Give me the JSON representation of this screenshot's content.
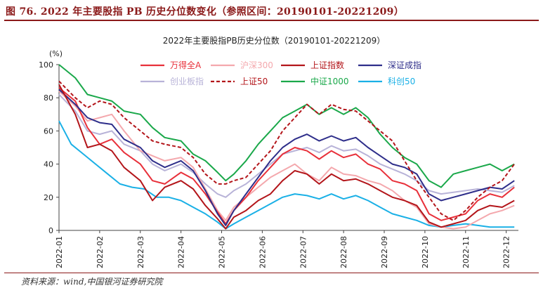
{
  "figure": {
    "caption": "图 76. 2022 年主要股指 PB 历史分位数变化（参照区间：20190101-20221209）",
    "source": "资料来源：wind,中国银河证券研究院"
  },
  "chart_data": {
    "type": "line",
    "title": "2022年主要股指PB历史分位数（20190101-20221209）",
    "ylabel": "(%)",
    "ylim": [
      0,
      100
    ],
    "yticks": [
      0,
      20,
      40,
      60,
      80,
      100
    ],
    "xticks": [
      "2022-01",
      "2022-02",
      "2022-03",
      "2022-04",
      "2022-05",
      "2022-06",
      "2022-07",
      "2022-08",
      "2022-09",
      "2022-10",
      "2022-11",
      "2022-12"
    ],
    "x_range_months": [
      0,
      11.3
    ],
    "grid": false,
    "legend_position": "top",
    "series": [
      {
        "name": "万得全A",
        "color": "#e8303a",
        "dash": false,
        "width": 2,
        "values": [
          [
            0,
            86
          ],
          [
            0.4,
            78
          ],
          [
            0.7,
            62
          ],
          [
            1.0,
            52
          ],
          [
            1.3,
            55
          ],
          [
            1.6,
            47
          ],
          [
            2.0,
            40
          ],
          [
            2.3,
            30
          ],
          [
            2.6,
            28
          ],
          [
            3.0,
            35
          ],
          [
            3.3,
            31
          ],
          [
            3.6,
            22
          ],
          [
            3.9,
            11
          ],
          [
            4.1,
            4
          ],
          [
            4.3,
            12
          ],
          [
            4.6,
            20
          ],
          [
            4.9,
            30
          ],
          [
            5.2,
            38
          ],
          [
            5.5,
            46
          ],
          [
            5.8,
            50
          ],
          [
            6.1,
            48
          ],
          [
            6.4,
            43
          ],
          [
            6.7,
            48
          ],
          [
            7.0,
            44
          ],
          [
            7.3,
            46
          ],
          [
            7.6,
            40
          ],
          [
            7.9,
            37
          ],
          [
            8.2,
            30
          ],
          [
            8.5,
            28
          ],
          [
            8.8,
            24
          ],
          [
            9.1,
            10
          ],
          [
            9.4,
            6
          ],
          [
            9.7,
            8
          ],
          [
            10.0,
            10
          ],
          [
            10.3,
            18
          ],
          [
            10.6,
            22
          ],
          [
            10.9,
            20
          ],
          [
            11.2,
            26
          ]
        ]
      },
      {
        "name": "沪深300",
        "color": "#f4a8ad",
        "dash": false,
        "width": 2,
        "values": [
          [
            0,
            84
          ],
          [
            0.4,
            75
          ],
          [
            0.7,
            66
          ],
          [
            1.0,
            68
          ],
          [
            1.3,
            70
          ],
          [
            1.6,
            60
          ],
          [
            2.0,
            48
          ],
          [
            2.3,
            45
          ],
          [
            2.6,
            42
          ],
          [
            3.0,
            44
          ],
          [
            3.3,
            38
          ],
          [
            3.6,
            25
          ],
          [
            3.9,
            12
          ],
          [
            4.1,
            6
          ],
          [
            4.3,
            14
          ],
          [
            4.6,
            20
          ],
          [
            4.9,
            26
          ],
          [
            5.2,
            32
          ],
          [
            5.5,
            36
          ],
          [
            5.8,
            40
          ],
          [
            6.1,
            34
          ],
          [
            6.4,
            30
          ],
          [
            6.7,
            38
          ],
          [
            7.0,
            34
          ],
          [
            7.3,
            33
          ],
          [
            7.6,
            30
          ],
          [
            7.9,
            28
          ],
          [
            8.2,
            24
          ],
          [
            8.5,
            18
          ],
          [
            8.8,
            14
          ],
          [
            9.1,
            4
          ],
          [
            9.4,
            2
          ],
          [
            9.7,
            1
          ],
          [
            10.0,
            2
          ],
          [
            10.3,
            6
          ],
          [
            10.6,
            10
          ],
          [
            10.9,
            12
          ],
          [
            11.2,
            15
          ]
        ]
      },
      {
        "name": "上证指数",
        "color": "#b3151a",
        "dash": false,
        "width": 2,
        "values": [
          [
            0,
            88
          ],
          [
            0.4,
            70
          ],
          [
            0.7,
            50
          ],
          [
            1.0,
            52
          ],
          [
            1.3,
            48
          ],
          [
            1.6,
            38
          ],
          [
            2.0,
            30
          ],
          [
            2.3,
            18
          ],
          [
            2.6,
            26
          ],
          [
            3.0,
            30
          ],
          [
            3.3,
            25
          ],
          [
            3.6,
            15
          ],
          [
            3.9,
            7
          ],
          [
            4.1,
            1
          ],
          [
            4.3,
            8
          ],
          [
            4.6,
            12
          ],
          [
            4.9,
            18
          ],
          [
            5.2,
            22
          ],
          [
            5.5,
            30
          ],
          [
            5.8,
            36
          ],
          [
            6.1,
            34
          ],
          [
            6.4,
            28
          ],
          [
            6.7,
            34
          ],
          [
            7.0,
            30
          ],
          [
            7.3,
            31
          ],
          [
            7.6,
            28
          ],
          [
            7.9,
            24
          ],
          [
            8.2,
            20
          ],
          [
            8.5,
            18
          ],
          [
            8.8,
            15
          ],
          [
            9.1,
            5
          ],
          [
            9.4,
            2
          ],
          [
            9.7,
            4
          ],
          [
            10.0,
            6
          ],
          [
            10.3,
            12
          ],
          [
            10.6,
            15
          ],
          [
            10.9,
            14
          ],
          [
            11.2,
            18
          ]
        ]
      },
      {
        "name": "深证成指",
        "color": "#2e2e8a",
        "dash": false,
        "width": 2,
        "values": [
          [
            0,
            85
          ],
          [
            0.4,
            76
          ],
          [
            0.7,
            68
          ],
          [
            1.0,
            65
          ],
          [
            1.3,
            64
          ],
          [
            1.6,
            55
          ],
          [
            2.0,
            50
          ],
          [
            2.3,
            42
          ],
          [
            2.6,
            38
          ],
          [
            3.0,
            42
          ],
          [
            3.3,
            36
          ],
          [
            3.6,
            24
          ],
          [
            3.9,
            10
          ],
          [
            4.1,
            3
          ],
          [
            4.3,
            12
          ],
          [
            4.6,
            22
          ],
          [
            4.9,
            32
          ],
          [
            5.2,
            42
          ],
          [
            5.5,
            50
          ],
          [
            5.8,
            55
          ],
          [
            6.1,
            58
          ],
          [
            6.4,
            54
          ],
          [
            6.7,
            57
          ],
          [
            7.0,
            54
          ],
          [
            7.3,
            56
          ],
          [
            7.6,
            50
          ],
          [
            7.9,
            45
          ],
          [
            8.2,
            40
          ],
          [
            8.5,
            38
          ],
          [
            8.8,
            34
          ],
          [
            9.1,
            22
          ],
          [
            9.4,
            18
          ],
          [
            9.7,
            20
          ],
          [
            10.0,
            22
          ],
          [
            10.3,
            24
          ],
          [
            10.6,
            26
          ],
          [
            10.9,
            25
          ],
          [
            11.2,
            30
          ]
        ]
      },
      {
        "name": "创业板指",
        "color": "#b8b3d8",
        "dash": false,
        "width": 2,
        "values": [
          [
            0,
            82
          ],
          [
            0.4,
            72
          ],
          [
            0.7,
            60
          ],
          [
            1.0,
            58
          ],
          [
            1.3,
            60
          ],
          [
            1.6,
            52
          ],
          [
            2.0,
            48
          ],
          [
            2.3,
            40
          ],
          [
            2.6,
            36
          ],
          [
            3.0,
            40
          ],
          [
            3.3,
            35
          ],
          [
            3.6,
            28
          ],
          [
            3.9,
            22
          ],
          [
            4.1,
            20
          ],
          [
            4.3,
            24
          ],
          [
            4.6,
            28
          ],
          [
            4.9,
            34
          ],
          [
            5.2,
            40
          ],
          [
            5.5,
            46
          ],
          [
            5.8,
            48
          ],
          [
            6.1,
            50
          ],
          [
            6.4,
            47
          ],
          [
            6.7,
            51
          ],
          [
            7.0,
            48
          ],
          [
            7.3,
            49
          ],
          [
            7.6,
            45
          ],
          [
            7.9,
            40
          ],
          [
            8.2,
            37
          ],
          [
            8.5,
            34
          ],
          [
            8.8,
            30
          ],
          [
            9.1,
            24
          ],
          [
            9.4,
            22
          ],
          [
            9.7,
            23
          ],
          [
            10.0,
            24
          ],
          [
            10.3,
            25
          ],
          [
            10.6,
            24
          ],
          [
            10.9,
            23
          ],
          [
            11.2,
            27
          ]
        ]
      },
      {
        "name": "上证50",
        "color": "#b3151a",
        "dash": true,
        "width": 2,
        "values": [
          [
            0,
            90
          ],
          [
            0.4,
            80
          ],
          [
            0.7,
            74
          ],
          [
            1.0,
            78
          ],
          [
            1.3,
            76
          ],
          [
            1.6,
            68
          ],
          [
            2.0,
            60
          ],
          [
            2.3,
            54
          ],
          [
            2.6,
            52
          ],
          [
            3.0,
            50
          ],
          [
            3.3,
            44
          ],
          [
            3.6,
            34
          ],
          [
            3.9,
            28
          ],
          [
            4.1,
            28
          ],
          [
            4.3,
            30
          ],
          [
            4.6,
            32
          ],
          [
            4.9,
            40
          ],
          [
            5.2,
            48
          ],
          [
            5.5,
            60
          ],
          [
            5.8,
            68
          ],
          [
            6.1,
            76
          ],
          [
            6.4,
            70
          ],
          [
            6.7,
            76
          ],
          [
            7.0,
            73
          ],
          [
            7.3,
            72
          ],
          [
            7.6,
            66
          ],
          [
            7.9,
            60
          ],
          [
            8.2,
            54
          ],
          [
            8.5,
            42
          ],
          [
            8.8,
            30
          ],
          [
            9.1,
            20
          ],
          [
            9.4,
            10
          ],
          [
            9.7,
            6
          ],
          [
            10.0,
            12
          ],
          [
            10.3,
            20
          ],
          [
            10.6,
            26
          ],
          [
            10.9,
            30
          ],
          [
            11.2,
            40
          ]
        ]
      },
      {
        "name": "中证1000",
        "color": "#1aa84a",
        "dash": false,
        "width": 2,
        "values": [
          [
            0,
            100
          ],
          [
            0.4,
            92
          ],
          [
            0.7,
            82
          ],
          [
            1.0,
            80
          ],
          [
            1.3,
            78
          ],
          [
            1.6,
            72
          ],
          [
            2.0,
            70
          ],
          [
            2.3,
            62
          ],
          [
            2.6,
            56
          ],
          [
            3.0,
            54
          ],
          [
            3.3,
            46
          ],
          [
            3.6,
            42
          ],
          [
            3.9,
            35
          ],
          [
            4.1,
            30
          ],
          [
            4.3,
            34
          ],
          [
            4.6,
            42
          ],
          [
            4.9,
            52
          ],
          [
            5.2,
            60
          ],
          [
            5.5,
            68
          ],
          [
            5.8,
            72
          ],
          [
            6.1,
            76
          ],
          [
            6.4,
            70
          ],
          [
            6.7,
            74
          ],
          [
            7.0,
            70
          ],
          [
            7.3,
            74
          ],
          [
            7.6,
            68
          ],
          [
            7.9,
            58
          ],
          [
            8.2,
            50
          ],
          [
            8.5,
            44
          ],
          [
            8.8,
            40
          ],
          [
            9.1,
            30
          ],
          [
            9.4,
            26
          ],
          [
            9.7,
            34
          ],
          [
            10.0,
            36
          ],
          [
            10.3,
            38
          ],
          [
            10.6,
            40
          ],
          [
            10.9,
            36
          ],
          [
            11.2,
            40
          ]
        ]
      },
      {
        "name": "科创50",
        "color": "#1ab0e6",
        "dash": false,
        "width": 2,
        "values": [
          [
            0,
            66
          ],
          [
            0.3,
            52
          ],
          [
            0.6,
            46
          ],
          [
            0.9,
            40
          ],
          [
            1.2,
            34
          ],
          [
            1.5,
            28
          ],
          [
            1.8,
            26
          ],
          [
            2.1,
            25
          ],
          [
            2.4,
            20
          ],
          [
            2.7,
            20
          ],
          [
            3.0,
            18
          ],
          [
            3.3,
            14
          ],
          [
            3.6,
            10
          ],
          [
            3.9,
            5
          ],
          [
            4.1,
            1
          ],
          [
            4.3,
            4
          ],
          [
            4.6,
            8
          ],
          [
            4.9,
            12
          ],
          [
            5.2,
            16
          ],
          [
            5.5,
            20
          ],
          [
            5.8,
            22
          ],
          [
            6.1,
            21
          ],
          [
            6.4,
            19
          ],
          [
            6.7,
            22
          ],
          [
            7.0,
            19
          ],
          [
            7.3,
            21
          ],
          [
            7.6,
            18
          ],
          [
            7.9,
            14
          ],
          [
            8.2,
            10
          ],
          [
            8.5,
            8
          ],
          [
            8.8,
            6
          ],
          [
            9.1,
            3
          ],
          [
            9.4,
            2
          ],
          [
            9.7,
            3
          ],
          [
            10.0,
            4
          ],
          [
            10.3,
            3
          ],
          [
            10.6,
            2
          ],
          [
            10.9,
            2
          ],
          [
            11.2,
            2
          ]
        ]
      }
    ]
  }
}
